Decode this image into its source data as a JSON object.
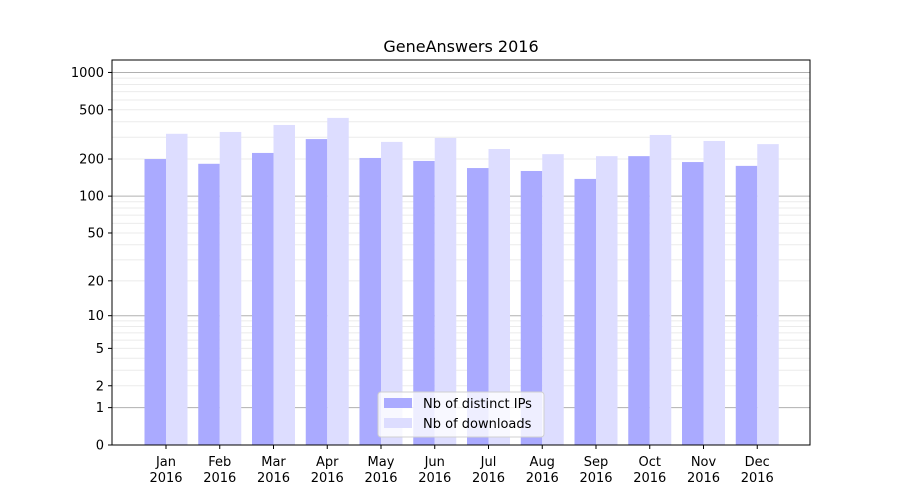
{
  "chart_data": {
    "type": "bar",
    "title": "GeneAnswers 2016",
    "xlabel": "",
    "ylabel": "",
    "yscale": "log(1+y)",
    "ylim": [
      0,
      1260
    ],
    "yticks": [
      0,
      1,
      2,
      5,
      10,
      20,
      50,
      100,
      200,
      500,
      1000
    ],
    "grid": true,
    "legend_position": "bottom-center",
    "categories": [
      "Jan\n2016",
      "Feb\n2016",
      "Mar\n2016",
      "Apr\n2016",
      "May\n2016",
      "Jun\n2016",
      "Jul\n2016",
      "Aug\n2016",
      "Sep\n2016",
      "Oct\n2016",
      "Nov\n2016",
      "Dec\n2016"
    ],
    "series": [
      {
        "name": "Nb of distinct IPs",
        "color": "#aaaaff",
        "values": [
          200,
          183,
          224,
          290,
          204,
          193,
          169,
          160,
          138,
          211,
          189,
          176
        ]
      },
      {
        "name": "Nb of downloads",
        "color": "#ddddff",
        "values": [
          320,
          331,
          377,
          430,
          275,
          296,
          241,
          219,
          211,
          313,
          280,
          264
        ]
      }
    ]
  }
}
